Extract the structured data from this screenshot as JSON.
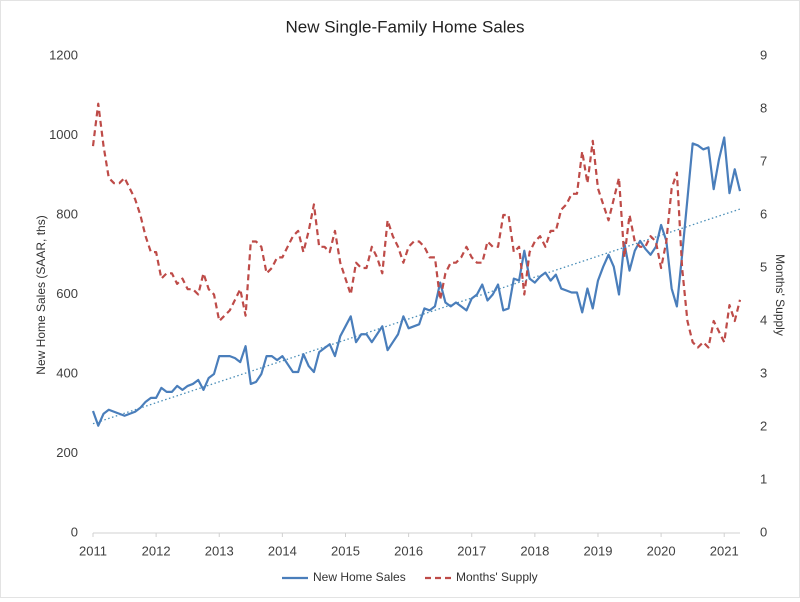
{
  "chart_data": {
    "type": "line",
    "title": "New Single-Family Home Sales",
    "y_label": "New Home Sales (SAAR, ths)",
    "y2_label": "Months' Supply",
    "x": [
      2011,
      2011.083,
      2011.167,
      2011.25,
      2011.333,
      2011.417,
      2011.5,
      2011.583,
      2011.667,
      2011.75,
      2011.833,
      2011.917,
      2012,
      2012.083,
      2012.167,
      2012.25,
      2012.333,
      2012.417,
      2012.5,
      2012.583,
      2012.667,
      2012.75,
      2012.833,
      2012.917,
      2013,
      2013.083,
      2013.167,
      2013.25,
      2013.333,
      2013.417,
      2013.5,
      2013.583,
      2013.667,
      2013.75,
      2013.833,
      2013.917,
      2014,
      2014.083,
      2014.167,
      2014.25,
      2014.333,
      2014.417,
      2014.5,
      2014.583,
      2014.667,
      2014.75,
      2014.833,
      2014.917,
      2015,
      2015.083,
      2015.167,
      2015.25,
      2015.333,
      2015.417,
      2015.5,
      2015.583,
      2015.667,
      2015.75,
      2015.833,
      2015.917,
      2016,
      2016.083,
      2016.167,
      2016.25,
      2016.333,
      2016.417,
      2016.5,
      2016.583,
      2016.667,
      2016.75,
      2016.833,
      2016.917,
      2017,
      2017.083,
      2017.167,
      2017.25,
      2017.333,
      2017.417,
      2017.5,
      2017.583,
      2017.667,
      2017.75,
      2017.833,
      2017.917,
      2018,
      2018.083,
      2018.167,
      2018.25,
      2018.333,
      2018.417,
      2018.5,
      2018.583,
      2018.667,
      2018.75,
      2018.833,
      2018.917,
      2019,
      2019.083,
      2019.167,
      2019.25,
      2019.333,
      2019.417,
      2019.5,
      2019.583,
      2019.667,
      2019.75,
      2019.833,
      2019.917,
      2020,
      2020.083,
      2020.167,
      2020.25,
      2020.333,
      2020.417,
      2020.5,
      2020.583,
      2020.667,
      2020.75,
      2020.833,
      2020.917,
      2021,
      2021.083,
      2021.167,
      2021.25
    ],
    "series": [
      {
        "name": "New Home Sales",
        "color": "#4a7ebb",
        "style": "solid",
        "axis": "y",
        "values": [
          307,
          270,
          300,
          310,
          305,
          300,
          295,
          300,
          305,
          315,
          330,
          340,
          340,
          365,
          355,
          355,
          370,
          360,
          370,
          375,
          385,
          360,
          390,
          400,
          445,
          445,
          445,
          440,
          430,
          470,
          375,
          380,
          400,
          445,
          445,
          435,
          445,
          425,
          405,
          405,
          450,
          420,
          405,
          455,
          465,
          475,
          445,
          495,
          520,
          545,
          480,
          500,
          500,
          480,
          500,
          520,
          460,
          480,
          500,
          545,
          515,
          520,
          525,
          565,
          560,
          570,
          630,
          580,
          570,
          580,
          570,
          560,
          590,
          600,
          625,
          585,
          600,
          625,
          560,
          565,
          640,
          635,
          710,
          640,
          630,
          645,
          655,
          635,
          650,
          615,
          610,
          605,
          605,
          555,
          615,
          565,
          635,
          670,
          700,
          670,
          600,
          730,
          660,
          710,
          735,
          715,
          700,
          720,
          775,
          735,
          615,
          570,
          700,
          840,
          980,
          975,
          965,
          970,
          865,
          940,
          995,
          855,
          915,
          860
        ]
      },
      {
        "name": "Months' Supply",
        "color": "#be4b48",
        "style": "dashed",
        "axis": "y2",
        "values": [
          7.3,
          8.1,
          7.3,
          6.7,
          6.6,
          6.6,
          6.7,
          6.5,
          6.3,
          6.0,
          5.6,
          5.3,
          5.3,
          4.8,
          4.9,
          4.9,
          4.7,
          4.8,
          4.6,
          4.6,
          4.5,
          4.9,
          4.6,
          4.5,
          4.0,
          4.1,
          4.2,
          4.4,
          4.6,
          4.1,
          5.5,
          5.5,
          5.4,
          4.9,
          5.0,
          5.2,
          5.2,
          5.4,
          5.6,
          5.7,
          5.3,
          5.7,
          6.2,
          5.4,
          5.4,
          5.3,
          5.7,
          5.1,
          4.8,
          4.5,
          5.1,
          5.0,
          5.0,
          5.4,
          5.2,
          4.9,
          5.9,
          5.6,
          5.4,
          5.1,
          5.4,
          5.5,
          5.5,
          5.4,
          5.2,
          5.2,
          4.4,
          4.9,
          5.1,
          5.1,
          5.2,
          5.4,
          5.2,
          5.1,
          5.1,
          5.5,
          5.4,
          5.4,
          6.0,
          6.0,
          5.3,
          5.4,
          4.5,
          5.3,
          5.5,
          5.6,
          5.4,
          5.7,
          5.7,
          6.1,
          6.2,
          6.4,
          6.4,
          7.2,
          6.6,
          7.4,
          6.5,
          6.2,
          5.9,
          6.3,
          6.7,
          5.2,
          6.0,
          5.5,
          5.4,
          5.4,
          5.6,
          5.5,
          5.0,
          5.5,
          6.5,
          6.8,
          5.0,
          4.0,
          3.6,
          3.5,
          3.6,
          3.5,
          4.0,
          3.8,
          3.6,
          4.3,
          4.0,
          4.4
        ]
      }
    ],
    "trendline": {
      "color": "#4a8eb8",
      "style": "dotted",
      "x": [
        2011,
        2021.25
      ],
      "values": [
        275,
        815
      ]
    },
    "xlim": [
      2011,
      2021.25
    ],
    "xticks": [
      2011,
      2012,
      2013,
      2014,
      2015,
      2016,
      2017,
      2018,
      2019,
      2020,
      2021
    ],
    "ylim": [
      0,
      1200
    ],
    "yticks": [
      0,
      200,
      400,
      600,
      800,
      1000,
      1200
    ],
    "y2lim": [
      0,
      9
    ],
    "y2ticks": [
      0,
      1,
      2,
      3,
      4,
      5,
      6,
      7,
      8,
      9
    ],
    "grid": false,
    "legend": "bottom"
  }
}
